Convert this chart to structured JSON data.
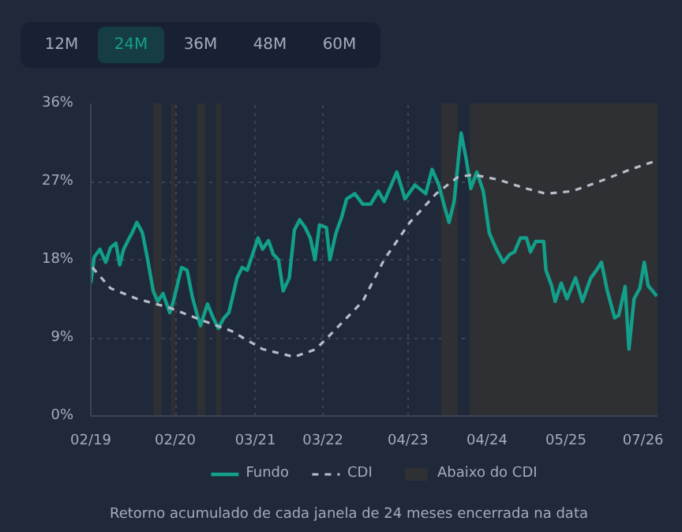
{
  "chart_data": {
    "type": "line",
    "annotations": [
      "12M",
      "24M",
      "36M",
      "48M",
      "60M",
      "Retorno acumulado de cada janela de 24 meses encerrada na data"
    ],
    "x": [
      "2019-02-01",
      "2019-02-18",
      "2019-03-18",
      "2019-04-15",
      "2019-05-09",
      "2019-06-04",
      "2019-06-23",
      "2019-07-12",
      "2019-08-09",
      "2019-08-23",
      "2019-09-15",
      "2019-10-12",
      "2019-11-07",
      "2019-12-04",
      "2019-12-26",
      "2020-01-21",
      "2020-02-23",
      "2020-03-12",
      "2020-04-21",
      "2020-05-18",
      "2020-06-12",
      "2020-07-07",
      "2020-07-23",
      "2020-08-26",
      "2020-09-23",
      "2020-10-18",
      "2020-11-15",
      "2020-12-09",
      "2021-01-18",
      "2021-02-12",
      "2021-03-09",
      "2021-04-04",
      "2021-05-01",
      "2021-05-23",
      "2021-06-21",
      "2021-07-15",
      "2021-08-09",
      "2021-09-01",
      "2021-10-01",
      "2021-10-26",
      "2021-11-21",
      "2021-12-18",
      "2022-01-12",
      "2022-02-04",
      "2022-02-26",
      "2022-04-01",
      "2022-04-18",
      "2022-05-18",
      "2022-06-15",
      "2022-07-09",
      "2022-08-18",
      "2022-09-26",
      "2022-11-04",
      "2022-12-12",
      "2023-01-09",
      "2023-03-12",
      "2023-04-21",
      "2023-06-09",
      "2023-08-01",
      "2023-09-01",
      "2023-10-04",
      "2023-11-01",
      "2023-11-23",
      "2023-12-18",
      "2024-01-21",
      "2024-02-15",
      "2024-03-09",
      "2024-04-07",
      "2024-05-09",
      "2024-06-07",
      "2024-07-12",
      "2024-08-15",
      "2024-09-15",
      "2024-10-09",
      "2024-11-07",
      "2024-12-07",
      "2024-12-26",
      "2025-01-21",
      "2025-03-01",
      "2025-03-12",
      "2025-04-09",
      "2025-04-26",
      "2025-05-26",
      "2025-06-23",
      "2025-08-04",
      "2025-09-07",
      "2025-10-18",
      "2025-11-15",
      "2025-12-09",
      "2026-01-07",
      "2026-02-12",
      "2026-03-04",
      "2026-04-04",
      "2026-04-23",
      "2026-05-18",
      "2026-06-15",
      "2026-07-07",
      "2026-07-26",
      "2026-09-07"
    ],
    "series": [
      {
        "name": "Fundo",
        "color": "#12a08a",
        "line_style": "solid",
        "values": [
          15.3,
          18.3,
          19.2,
          17.7,
          19.4,
          19.9,
          17.4,
          19.2,
          20.5,
          21.1,
          22.3,
          21.1,
          18.0,
          14.4,
          13.2,
          14.1,
          11.9,
          13.2,
          17.1,
          16.8,
          13.8,
          11.6,
          10.4,
          12.9,
          11.3,
          10.1,
          11.3,
          11.9,
          15.9,
          17.1,
          16.8,
          18.6,
          20.5,
          19.2,
          20.2,
          18.6,
          18.0,
          14.4,
          15.9,
          21.4,
          22.6,
          21.7,
          20.5,
          18.0,
          22.0,
          21.7,
          18.0,
          21.1,
          22.9,
          25.0,
          25.6,
          24.4,
          24.4,
          25.9,
          24.7,
          28.1,
          25.0,
          26.6,
          25.6,
          28.4,
          26.6,
          24.1,
          22.3,
          24.7,
          32.6,
          29.6,
          26.2,
          28.1,
          25.9,
          21.1,
          19.2,
          17.7,
          18.6,
          18.9,
          20.5,
          20.5,
          18.9,
          20.1,
          20.1,
          16.8,
          15.0,
          13.2,
          15.3,
          13.5,
          15.9,
          13.2,
          15.9,
          16.8,
          17.7,
          14.4,
          11.3,
          11.6,
          14.9,
          7.7,
          13.5,
          14.7,
          17.7,
          15.0,
          13.8
        ]
      },
      {
        "name": "CDI",
        "color": "#b8bcc8",
        "line_style": "dashed",
        "x": [
          "2019-02-09",
          "2019-05-09",
          "2019-09-15",
          "2020-02-18",
          "2020-08-01",
          "2020-12-21",
          "2021-05-23",
          "2021-10-26",
          "2022-02-09",
          "2022-06-15",
          "2022-09-26",
          "2023-01-09",
          "2023-05-15",
          "2023-09-21",
          "2024-01-04",
          "2024-03-21",
          "2024-07-23",
          "2024-12-04",
          "2025-03-12",
          "2025-07-21",
          "2025-12-21",
          "2026-05-01",
          "2026-08-23"
        ],
        "values": [
          17.1,
          14.7,
          13.5,
          12.5,
          11.0,
          9.8,
          7.7,
          6.8,
          7.7,
          10.7,
          13.2,
          18.0,
          22.3,
          25.6,
          27.5,
          27.8,
          27.2,
          26.2,
          25.6,
          25.9,
          27.2,
          28.4,
          29.3
        ]
      }
    ],
    "bands": [
      {
        "axis": "x",
        "from": "2019-12-04",
        "to": "2020-01-15",
        "label": "Abaixo do CDI",
        "color": "#2f3034"
      },
      {
        "axis": "x",
        "from": "2020-03-01",
        "to": "2020-03-20",
        "color": "#2f3034"
      },
      {
        "axis": "x",
        "from": "2020-07-07",
        "to": "2020-08-15",
        "color": "#2f3034"
      },
      {
        "axis": "x",
        "from": "2020-10-07",
        "to": "2020-11-01",
        "color": "#2f3034"
      },
      {
        "axis": "x",
        "from": "2023-10-15",
        "to": "2024-01-04",
        "color": "#2f3034"
      },
      {
        "axis": "x",
        "from": "2024-03-04",
        "to": "2026-09-10",
        "color": "#2f3034"
      }
    ],
    "xlim": [
      "2019-02-01",
      "2026-09-10"
    ],
    "xticks": [
      {
        "value": "2019-02-01",
        "label": "02/19"
      },
      {
        "value": "2020-03-21",
        "label": "02/20"
      },
      {
        "value": "2021-04-18",
        "label": "03/21"
      },
      {
        "value": "2022-03-15",
        "label": "03/22"
      },
      {
        "value": "2023-05-06",
        "label": "04/23"
      },
      {
        "value": "2024-05-27",
        "label": "04/24"
      },
      {
        "value": "2025-06-18",
        "label": "05/25"
      },
      {
        "value": "2026-07-01",
        "label": "07/26"
      }
    ],
    "ylim": [
      0,
      36
    ],
    "yticks": [
      {
        "value": 0,
        "label": "0%"
      },
      {
        "value": 9,
        "label": "9%"
      },
      {
        "value": 18,
        "label": "18%"
      },
      {
        "value": 27,
        "label": "27%"
      },
      {
        "value": 36,
        "label": "36%"
      }
    ],
    "grid": true,
    "legend": "bottom",
    "marker": "none"
  }
}
